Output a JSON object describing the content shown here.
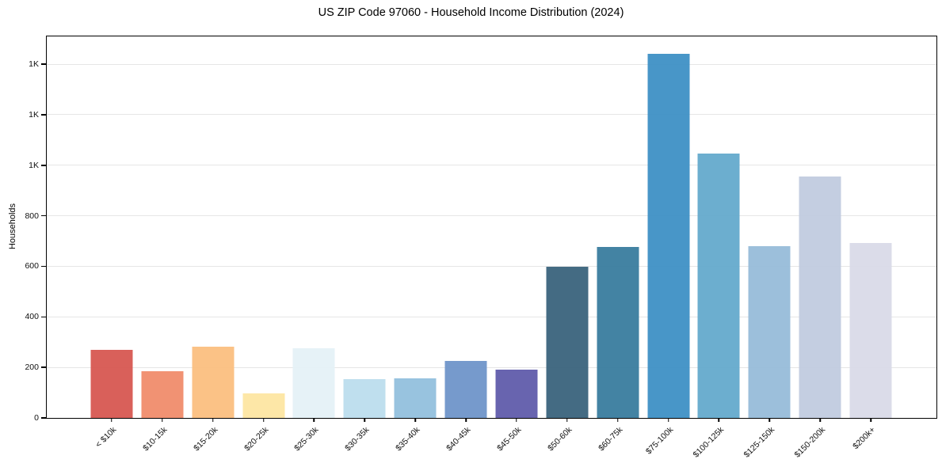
{
  "chart_data": {
    "type": "bar",
    "title": "US ZIP Code 97060 - Household Income Distribution (2024)",
    "xlabel": "",
    "ylabel": "Households",
    "categories": [
      "< $10k",
      "$10-15k",
      "$15-20k",
      "$20-25k",
      "$25-30k",
      "$30-35k",
      "$35-40k",
      "$40-45k",
      "$45-50k",
      "$50-60k",
      "$60-75k",
      "$75-100k",
      "$100-125k",
      "$125-150k",
      "$150-200k",
      "$200k+"
    ],
    "values": [
      271,
      184,
      281,
      98,
      275,
      155,
      158,
      226,
      191,
      598,
      678,
      1440,
      1047,
      681,
      955,
      693
    ],
    "bar_colors": [
      "#d6544d",
      "#f08a68",
      "#fbbd7d",
      "#fde5a0",
      "#e4f1f6",
      "#badded",
      "#90bedd",
      "#6c92c8",
      "#5c58a9",
      "#36607a",
      "#357a9c",
      "#3a8ec4",
      "#61a8cb",
      "#94bad8",
      "#bfcadf",
      "#d8d9e7"
    ],
    "ylim": [
      0,
      1510
    ],
    "yticks": {
      "values": [
        0,
        200,
        400,
        600,
        800,
        1000,
        1200,
        1400
      ],
      "labels": [
        "0",
        "200",
        "400",
        "600",
        "800",
        "1K",
        "1K",
        "1K"
      ]
    },
    "grid": "horizontal",
    "grid_color": "#e6e6e6",
    "legend": "none",
    "background": "#ffffff",
    "spine_color": "#000000",
    "x_label_rotation_deg": 45
  }
}
